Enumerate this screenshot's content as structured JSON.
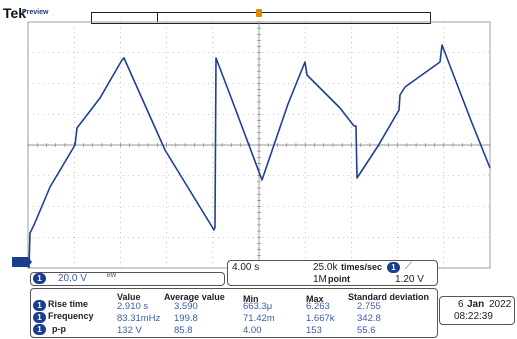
{
  "header": {
    "brand": "Tek",
    "mode": "Preview"
  },
  "channel": {
    "number": "1",
    "scale": "20.0 V",
    "bw_symbol": "ᴮᵂ"
  },
  "timebase": {
    "time_div": "4.00 s",
    "sample_rate": "25.0k",
    "sample_rate_unit": "times/sec",
    "record_length": "1M",
    "record_unit": "point",
    "trigger_channel": "1",
    "trigger_slope": "⟋",
    "trigger_level": "1.20 V"
  },
  "measurements": {
    "headers": [
      "Value",
      "Average value",
      "Min",
      "Max",
      "Standard deviation"
    ],
    "rows": [
      {
        "channel": "1",
        "label": "Rise time",
        "values": [
          "2.910 s",
          "3.590",
          "663.3μ",
          "6.263",
          "2.755"
        ]
      },
      {
        "channel": "1",
        "label": "Frequency",
        "values": [
          "83.31mHz",
          "199.8",
          "71.42m",
          "1.667k",
          "342.8"
        ]
      },
      {
        "channel": "1",
        "label": "p-p",
        "values": [
          "132 V",
          "85.8",
          "4.00",
          "153",
          "55.6"
        ]
      }
    ]
  },
  "datetime": {
    "day": "6",
    "month": "Jan",
    "year": "2022",
    "time": "08:22:39"
  },
  "colors": {
    "trace": "#1f3f94",
    "grid": "#9a9a9a",
    "trigger_marker": "#e08a00",
    "badge": "#1b3d8f"
  }
}
